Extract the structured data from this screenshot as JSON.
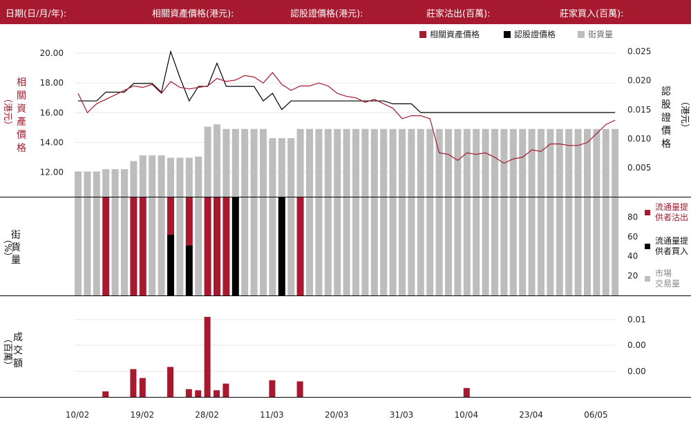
{
  "header": {
    "date": "日期(日/月/年):",
    "asset": "相關資產價格(港元):",
    "warrant": "認股證價格(港元):",
    "sold": "莊家沽出(百萬):",
    "bought": "莊家買入(百萬):"
  },
  "legend": {
    "asset": "相關資產價格",
    "warrant": "認股證價格",
    "outstanding": "街貨量"
  },
  "axes": {
    "left_price_title": [
      "相",
      "關",
      "資",
      "產",
      "價",
      "格"
    ],
    "left_price_unit": "（港元）",
    "right_price_title": [
      "認",
      "股",
      "證",
      "價",
      "格"
    ],
    "right_price_unit": "（港元）",
    "mid_title": [
      "街",
      "貨",
      "量"
    ],
    "mid_unit": "（%）",
    "bottom_title": [
      "成",
      "交",
      "額"
    ],
    "bottom_unit": "（百萬）"
  },
  "mid_legend": {
    "sell_line1": "流通量提",
    "sell_line2": "供者沽出",
    "buy_line1": "流通量提",
    "buy_line2": "供者買入",
    "market_line1": "市場",
    "market_line2": "交易量"
  },
  "colors": {
    "header": "#a6192e",
    "asset": "#a6192e",
    "warrant": "#000000",
    "outstanding": "#bdbdbd",
    "grid": "#e6e6e6"
  },
  "chart_data": {
    "type": "line",
    "x_tick_labels": [
      "10/02",
      "19/02",
      "28/02",
      "11/03",
      "20/03",
      "31/03",
      "10/04",
      "23/04",
      "06/05"
    ],
    "x_tick_index": [
      0,
      7,
      14,
      21,
      28,
      35,
      42,
      49,
      56
    ],
    "left_ticks": [
      "20.00",
      "18.00",
      "16.00",
      "14.00",
      "12.00"
    ],
    "left_ylim": [
      10.35,
      20.7
    ],
    "right_ticks": [
      "0.025",
      "0.020",
      "0.015",
      "0.010",
      "0.005"
    ],
    "right_ylim": [
      0.0,
      0.0265
    ],
    "asset_price": [
      17.3,
      16.0,
      16.6,
      16.9,
      17.2,
      17.5,
      17.8,
      17.7,
      17.9,
      17.3,
      18.1,
      17.7,
      17.6,
      17.7,
      17.8,
      18.3,
      18.1,
      18.2,
      18.5,
      18.4,
      18.0,
      18.7,
      17.9,
      17.5,
      17.8,
      17.8,
      18.0,
      17.8,
      17.3,
      17.1,
      17.0,
      16.7,
      16.9,
      16.6,
      16.3,
      15.6,
      15.8,
      15.8,
      15.6,
      13.3,
      13.2,
      12.8,
      13.3,
      13.2,
      13.3,
      13.0,
      12.6,
      12.9,
      13.0,
      13.5,
      13.4,
      13.9,
      13.9,
      13.8,
      13.8,
      14.0,
      14.6,
      15.2,
      15.5
    ],
    "warrant_price": [
      0.0165,
      0.0165,
      0.0165,
      0.018,
      0.018,
      0.018,
      0.0195,
      0.0195,
      0.0195,
      0.018,
      0.025,
      0.0205,
      0.0165,
      0.019,
      0.019,
      0.023,
      0.019,
      0.019,
      0.019,
      0.019,
      0.0165,
      0.0178,
      0.015,
      0.0165,
      0.0165,
      0.0165,
      0.0165,
      0.0165,
      0.0165,
      0.0165,
      0.0165,
      0.0165,
      0.0165,
      0.0165,
      0.016,
      0.016,
      0.016,
      0.0145,
      0.0145,
      0.0145,
      0.0145,
      0.0145,
      0.0145,
      0.0145,
      0.0145,
      0.0145,
      0.0145,
      0.0145,
      0.0145,
      0.0145,
      0.0145,
      0.0145,
      0.0145,
      0.0145,
      0.0145,
      0.0145,
      0.0145,
      0.0145,
      0.0145
    ],
    "outstanding_ylim": [
      0,
      13.4
    ],
    "outstanding": [
      2.2,
      2.2,
      2.2,
      2.4,
      2.4,
      2.4,
      3.1,
      3.6,
      3.6,
      3.6,
      3.4,
      3.4,
      3.4,
      3.5,
      6.1,
      6.3,
      5.9,
      5.9,
      5.9,
      5.9,
      5.9,
      5.1,
      5.1,
      5.1,
      5.9,
      5.9,
      5.9,
      5.9,
      5.9,
      5.9,
      5.9,
      5.9,
      5.9,
      5.9,
      5.9,
      5.9,
      5.9,
      5.9,
      5.9,
      5.9,
      5.9,
      5.9,
      5.9,
      5.9,
      5.9,
      5.9,
      5.9,
      5.9,
      5.9,
      5.9,
      5.9,
      5.9,
      5.9,
      5.9,
      5.9,
      5.9,
      5.9,
      5.9,
      5.9
    ],
    "market_volume_pct": [
      100,
      100,
      100,
      100,
      100,
      100,
      100,
      100,
      100,
      100,
      100,
      100,
      100,
      100,
      100,
      100,
      100,
      100,
      100,
      100,
      100,
      100,
      100,
      100,
      100,
      100,
      100,
      100,
      100,
      100,
      100,
      100,
      100,
      100,
      100,
      100,
      100,
      100,
      100,
      100,
      100,
      100,
      100,
      100,
      100,
      100,
      100,
      100,
      100,
      100,
      100,
      100,
      100,
      100,
      100,
      100,
      100,
      100,
      100
    ],
    "lp_sell_pct": [
      0,
      0,
      0,
      100,
      0,
      0,
      100,
      100,
      0,
      0,
      38,
      0,
      49,
      0,
      100,
      100,
      100,
      0,
      0,
      0,
      0,
      0,
      0,
      0,
      100,
      0,
      0,
      0,
      0,
      0,
      0,
      0,
      0,
      0,
      0,
      0,
      0,
      0,
      0,
      0,
      0,
      0,
      0,
      0,
      0,
      0,
      0,
      0,
      0,
      0,
      0,
      0,
      0,
      0,
      0,
      0,
      0,
      0,
      0
    ],
    "lp_buy_pct": [
      0,
      0,
      0,
      0,
      0,
      0,
      0,
      0,
      0,
      0,
      62,
      0,
      51,
      0,
      0,
      0,
      0,
      100,
      0,
      0,
      0,
      0,
      100,
      0,
      0,
      0,
      0,
      0,
      0,
      0,
      0,
      0,
      0,
      0,
      0,
      0,
      0,
      0,
      0,
      0,
      0,
      0,
      0,
      0,
      0,
      0,
      0,
      0,
      0,
      0,
      0,
      0,
      0,
      0,
      0,
      0,
      0,
      0,
      0
    ],
    "mid_ticks": [
      "80",
      "60",
      "40",
      "20"
    ],
    "mid_ylim": [
      0,
      100
    ],
    "turnover": [
      0,
      0,
      0,
      0.0005,
      0,
      0,
      0.0025,
      0.0017,
      0,
      0,
      0.0027,
      0,
      0.0007,
      0.0006,
      0.0072,
      0.0006,
      0.0012,
      0,
      0,
      0,
      0,
      0.0015,
      0,
      0,
      0.0014,
      0,
      0,
      0,
      0,
      0,
      0,
      0,
      0,
      0,
      0,
      0,
      0,
      0,
      0,
      0,
      0,
      0,
      0.0008,
      0,
      0,
      0,
      0,
      0,
      0,
      0,
      0,
      0,
      0,
      0,
      0,
      0,
      0,
      0,
      0,
      0
    ],
    "bottom_ticks": [
      "0.01",
      "0.00",
      "0.00"
    ],
    "bottom_ylim": [
      0,
      0.009
    ]
  }
}
